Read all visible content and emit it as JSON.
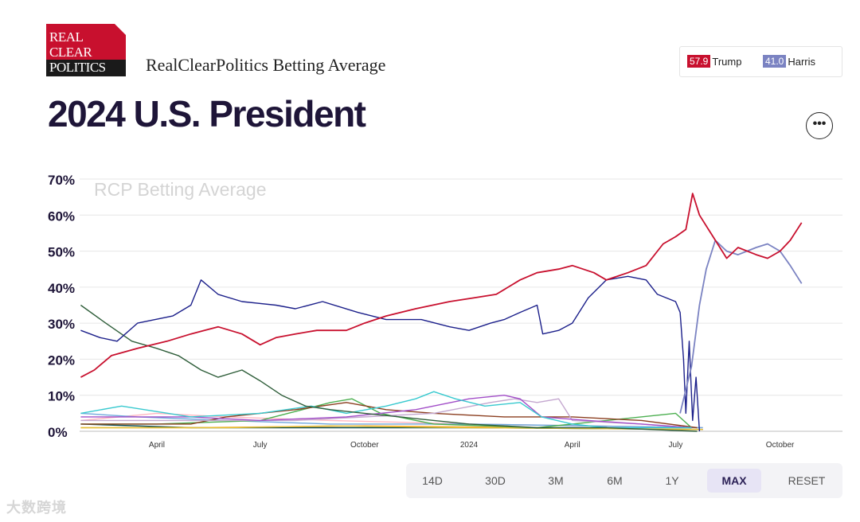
{
  "logo": {
    "line1": "REAL",
    "line2": "CLEAR",
    "line3": "POLITICS"
  },
  "header": {
    "subtitle": "RealClearPolitics Betting Average",
    "title": "2024 U.S. President"
  },
  "legend": {
    "trump": {
      "value": "57.9",
      "name": "Trump",
      "color": "#c8102e"
    },
    "harris": {
      "value": "41.0",
      "name": "Harris",
      "color": "#7b83c2"
    }
  },
  "menu": {
    "more_label": "•••"
  },
  "ranges": {
    "buttons": [
      "14D",
      "30D",
      "3M",
      "6M",
      "1Y",
      "MAX",
      "RESET"
    ],
    "active": "MAX"
  },
  "watermark": "大数跨境",
  "chart_data": {
    "type": "line",
    "title": "RCP Betting Average",
    "ylim": [
      0,
      70
    ],
    "xlim": [
      "2023-01-23",
      "2024-11-25"
    ],
    "yticks": [
      "0%",
      "10%",
      "20%",
      "30%",
      "40%",
      "50%",
      "60%",
      "70%"
    ],
    "xticks": [
      {
        "date": "2023-04-01",
        "label": "April"
      },
      {
        "date": "2023-07-01",
        "label": "July"
      },
      {
        "date": "2023-10-01",
        "label": "October"
      },
      {
        "date": "2024-01-01",
        "label": "2024"
      },
      {
        "date": "2024-04-01",
        "label": "April"
      },
      {
        "date": "2024-07-01",
        "label": "July"
      },
      {
        "date": "2024-10-01",
        "label": "October"
      }
    ],
    "grid": true,
    "series": [
      {
        "name": "Trump",
        "color": "#c8102e",
        "points": [
          [
            "2023-01-24",
            15
          ],
          [
            "2023-02-05",
            17
          ],
          [
            "2023-02-20",
            21
          ],
          [
            "2023-03-15",
            23
          ],
          [
            "2023-04-10",
            25
          ],
          [
            "2023-05-01",
            27
          ],
          [
            "2023-05-25",
            29
          ],
          [
            "2023-06-15",
            27
          ],
          [
            "2023-07-01",
            24
          ],
          [
            "2023-07-15",
            26
          ],
          [
            "2023-08-01",
            27
          ],
          [
            "2023-08-20",
            28
          ],
          [
            "2023-09-15",
            28
          ],
          [
            "2023-10-01",
            30
          ],
          [
            "2023-10-20",
            32
          ],
          [
            "2023-11-15",
            34
          ],
          [
            "2023-12-15",
            36
          ],
          [
            "2024-01-05",
            37
          ],
          [
            "2024-01-25",
            38
          ],
          [
            "2024-02-15",
            42
          ],
          [
            "2024-03-01",
            44
          ],
          [
            "2024-03-20",
            45
          ],
          [
            "2024-04-01",
            46
          ],
          [
            "2024-04-20",
            44
          ],
          [
            "2024-05-01",
            42
          ],
          [
            "2024-05-20",
            44
          ],
          [
            "2024-06-05",
            46
          ],
          [
            "2024-06-20",
            52
          ],
          [
            "2024-07-01",
            54
          ],
          [
            "2024-07-10",
            56
          ],
          [
            "2024-07-16",
            66
          ],
          [
            "2024-07-22",
            60
          ],
          [
            "2024-08-01",
            55
          ],
          [
            "2024-08-15",
            48
          ],
          [
            "2024-08-25",
            51
          ],
          [
            "2024-09-10",
            49
          ],
          [
            "2024-09-20",
            48
          ],
          [
            "2024-10-01",
            50
          ],
          [
            "2024-10-10",
            53
          ],
          [
            "2024-10-20",
            57.9
          ]
        ]
      },
      {
        "name": "Harris",
        "color": "#7b83c2",
        "points": [
          [
            "2024-07-05",
            5
          ],
          [
            "2024-07-15",
            18
          ],
          [
            "2024-07-22",
            35
          ],
          [
            "2024-07-28",
            45
          ],
          [
            "2024-08-05",
            53
          ],
          [
            "2024-08-15",
            50
          ],
          [
            "2024-08-25",
            49
          ],
          [
            "2024-09-10",
            51
          ],
          [
            "2024-09-20",
            52
          ],
          [
            "2024-10-01",
            50
          ],
          [
            "2024-10-10",
            46
          ],
          [
            "2024-10-20",
            41
          ]
        ]
      },
      {
        "color": "#1b1f8a",
        "points": [
          [
            "2023-01-24",
            28
          ],
          [
            "2023-02-10",
            26
          ],
          [
            "2023-02-25",
            25
          ],
          [
            "2023-03-15",
            30
          ],
          [
            "2023-04-15",
            32
          ],
          [
            "2023-05-01",
            35
          ],
          [
            "2023-05-10",
            42
          ],
          [
            "2023-05-25",
            38
          ],
          [
            "2023-06-15",
            36
          ],
          [
            "2023-07-15",
            35
          ],
          [
            "2023-08-01",
            34
          ],
          [
            "2023-08-25",
            36
          ],
          [
            "2023-09-25",
            33
          ],
          [
            "2023-10-20",
            31
          ],
          [
            "2023-11-20",
            31
          ],
          [
            "2023-12-15",
            29
          ],
          [
            "2024-01-01",
            28
          ],
          [
            "2024-01-20",
            30
          ],
          [
            "2024-02-01",
            31
          ],
          [
            "2024-02-15",
            33
          ],
          [
            "2024-03-01",
            35
          ],
          [
            "2024-03-06",
            27
          ],
          [
            "2024-03-20",
            28
          ],
          [
            "2024-04-01",
            30
          ],
          [
            "2024-04-15",
            37
          ],
          [
            "2024-05-01",
            42
          ],
          [
            "2024-05-20",
            43
          ],
          [
            "2024-06-05",
            42
          ],
          [
            "2024-06-15",
            38
          ],
          [
            "2024-07-01",
            36
          ],
          [
            "2024-07-05",
            33
          ],
          [
            "2024-07-08",
            20
          ],
          [
            "2024-07-10",
            5
          ],
          [
            "2024-07-13",
            25
          ],
          [
            "2024-07-16",
            3
          ],
          [
            "2024-07-19",
            15
          ],
          [
            "2024-07-22",
            0
          ]
        ]
      },
      {
        "color": "#2f5e3a",
        "points": [
          [
            "2023-01-24",
            35
          ],
          [
            "2023-02-15",
            30
          ],
          [
            "2023-03-10",
            25
          ],
          [
            "2023-04-01",
            23
          ],
          [
            "2023-04-20",
            21
          ],
          [
            "2023-05-10",
            17
          ],
          [
            "2023-05-25",
            15
          ],
          [
            "2023-06-15",
            17
          ],
          [
            "2023-07-01",
            14
          ],
          [
            "2023-07-20",
            10
          ],
          [
            "2023-08-10",
            7
          ],
          [
            "2023-09-01",
            6
          ],
          [
            "2023-10-01",
            5
          ],
          [
            "2023-11-01",
            4
          ],
          [
            "2023-12-01",
            3
          ],
          [
            "2024-01-01",
            2
          ],
          [
            "2024-03-01",
            1
          ],
          [
            "2024-05-01",
            1
          ],
          [
            "2024-07-20",
            0
          ]
        ]
      },
      {
        "color": "#38c9cf",
        "points": [
          [
            "2023-01-24",
            5
          ],
          [
            "2023-03-01",
            7
          ],
          [
            "2023-05-01",
            4
          ],
          [
            "2023-07-01",
            5
          ],
          [
            "2023-08-15",
            7
          ],
          [
            "2023-09-15",
            5
          ],
          [
            "2023-10-20",
            7
          ],
          [
            "2023-11-15",
            9
          ],
          [
            "2023-12-01",
            11
          ],
          [
            "2023-12-20",
            9
          ],
          [
            "2024-01-15",
            7
          ],
          [
            "2024-02-15",
            8
          ],
          [
            "2024-03-05",
            4
          ],
          [
            "2024-04-01",
            2
          ],
          [
            "2024-05-01",
            1
          ],
          [
            "2024-06-15",
            1
          ],
          [
            "2024-07-15",
            1
          ]
        ]
      },
      {
        "color": "#a24ec8",
        "points": [
          [
            "2023-01-24",
            4
          ],
          [
            "2023-05-01",
            4
          ],
          [
            "2023-07-01",
            3
          ],
          [
            "2023-09-15",
            4
          ],
          [
            "2023-11-15",
            6
          ],
          [
            "2024-01-01",
            9
          ],
          [
            "2024-02-01",
            10
          ],
          [
            "2024-02-15",
            9
          ],
          [
            "2024-03-05",
            4
          ],
          [
            "2024-04-15",
            3
          ],
          [
            "2024-06-01",
            2
          ],
          [
            "2024-07-15",
            1
          ]
        ]
      },
      {
        "color": "#c4a7cf",
        "points": [
          [
            "2023-01-24",
            3
          ],
          [
            "2023-08-01",
            3
          ],
          [
            "2023-12-01",
            5
          ],
          [
            "2024-01-20",
            8
          ],
          [
            "2024-02-10",
            9
          ],
          [
            "2024-03-01",
            8
          ],
          [
            "2024-03-20",
            9
          ],
          [
            "2024-04-01",
            3
          ],
          [
            "2024-06-01",
            2
          ],
          [
            "2024-07-15",
            1
          ]
        ]
      },
      {
        "color": "#8b3e1f",
        "points": [
          [
            "2023-01-24",
            2
          ],
          [
            "2023-05-01",
            2
          ],
          [
            "2023-06-01",
            4
          ],
          [
            "2023-08-01",
            6
          ],
          [
            "2023-09-15",
            8
          ],
          [
            "2023-10-20",
            6
          ],
          [
            "2023-12-01",
            5
          ],
          [
            "2024-02-01",
            4
          ],
          [
            "2024-04-01",
            4
          ],
          [
            "2024-06-01",
            3
          ],
          [
            "2024-07-20",
            1
          ]
        ]
      },
      {
        "color": "#4caf50",
        "points": [
          [
            "2023-01-24",
            2
          ],
          [
            "2023-04-01",
            2
          ],
          [
            "2023-07-01",
            3
          ],
          [
            "2023-09-01",
            8
          ],
          [
            "2023-09-20",
            9
          ],
          [
            "2023-10-15",
            5
          ],
          [
            "2023-12-01",
            2
          ],
          [
            "2024-03-01",
            1
          ],
          [
            "2024-07-01",
            5
          ],
          [
            "2024-07-15",
            1
          ]
        ]
      },
      {
        "color": "#e2c13b",
        "points": [
          [
            "2023-01-24",
            1
          ],
          [
            "2023-06-01",
            1
          ],
          [
            "2023-09-01",
            1.5
          ],
          [
            "2024-01-01",
            1
          ],
          [
            "2024-07-25",
            0.5
          ]
        ]
      },
      {
        "color": "#ff9f1c",
        "points": [
          [
            "2023-01-24",
            1
          ],
          [
            "2023-05-01",
            1
          ],
          [
            "2023-10-01",
            1.5
          ],
          [
            "2024-03-01",
            1
          ],
          [
            "2024-07-25",
            0.5
          ]
        ]
      },
      {
        "color": "#6fa8dc",
        "points": [
          [
            "2023-01-24",
            5
          ],
          [
            "2023-03-15",
            4
          ],
          [
            "2023-06-01",
            3
          ],
          [
            "2023-09-01",
            2
          ],
          [
            "2024-01-01",
            2
          ],
          [
            "2024-07-25",
            1
          ]
        ]
      },
      {
        "color": "#ffb6c1",
        "points": [
          [
            "2023-01-24",
            3
          ],
          [
            "2023-04-01",
            5
          ],
          [
            "2023-06-01",
            4
          ],
          [
            "2023-09-01",
            3
          ],
          [
            "2024-01-01",
            2
          ],
          [
            "2024-07-25",
            1
          ]
        ]
      },
      {
        "color": "#0d4d4d",
        "points": [
          [
            "2023-01-24",
            2
          ],
          [
            "2023-05-01",
            1
          ],
          [
            "2024-01-01",
            1
          ],
          [
            "2024-07-25",
            0.5
          ]
        ]
      }
    ]
  }
}
